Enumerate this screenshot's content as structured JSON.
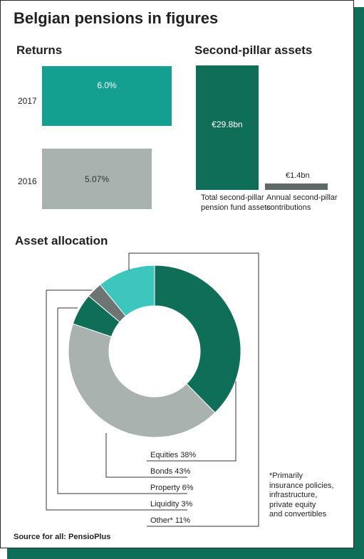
{
  "title": "Belgian pensions in figures",
  "returns": {
    "heading": "Returns",
    "bars": [
      {
        "year": "2017",
        "value": 6.0,
        "label": "6.0%",
        "color": "#14a090"
      },
      {
        "year": "2016",
        "value": 5.07,
        "label": "5.07%",
        "color": "#a9b2af"
      }
    ]
  },
  "second_pillar": {
    "heading": "Second-pillar assets",
    "bars": [
      {
        "value": 29.8,
        "label": "€29.8bn",
        "caption_lines": [
          "Total second-pillar",
          "pension fund assets"
        ],
        "color": "#0f6e57"
      },
      {
        "value": 1.4,
        "label": "€1.4bn",
        "caption_lines": [
          "Annual second-pillar",
          "contributions"
        ],
        "color": "#5f6a68"
      }
    ]
  },
  "allocation": {
    "heading": "Asset allocation",
    "slices": [
      {
        "label": "Equities 38%",
        "value": 38,
        "color": "#0f6e57"
      },
      {
        "label": "Bonds 43%",
        "value": 43,
        "color": "#a9b2af"
      },
      {
        "label": "Property 6%",
        "value": 6,
        "color": "#0f6e57"
      },
      {
        "label": "Liquidity 3%",
        "value": 3,
        "color": "#6e7471"
      },
      {
        "label": "Other* 11%",
        "value": 11,
        "color": "#3dc6bd"
      }
    ],
    "note_lines": [
      "*Primarily",
      "insurance policies,",
      "infrastructure,",
      "private equity",
      "and convertibles"
    ]
  },
  "source": "Source for all: PensioPlus",
  "chart_data": [
    {
      "type": "bar",
      "title": "Returns",
      "categories": [
        "2017",
        "2016"
      ],
      "values": [
        6.0,
        5.07
      ]
    },
    {
      "type": "bar",
      "title": "Second-pillar assets",
      "categories": [
        "Total second-pillar pension fund assets",
        "Annual second-pillar contributions"
      ],
      "values": [
        29.8,
        1.4
      ]
    },
    {
      "type": "pie",
      "title": "Asset allocation",
      "categories": [
        "Equities",
        "Bonds",
        "Property",
        "Liquidity",
        "Other*"
      ],
      "values": [
        38,
        43,
        6,
        3,
        11
      ]
    }
  ]
}
